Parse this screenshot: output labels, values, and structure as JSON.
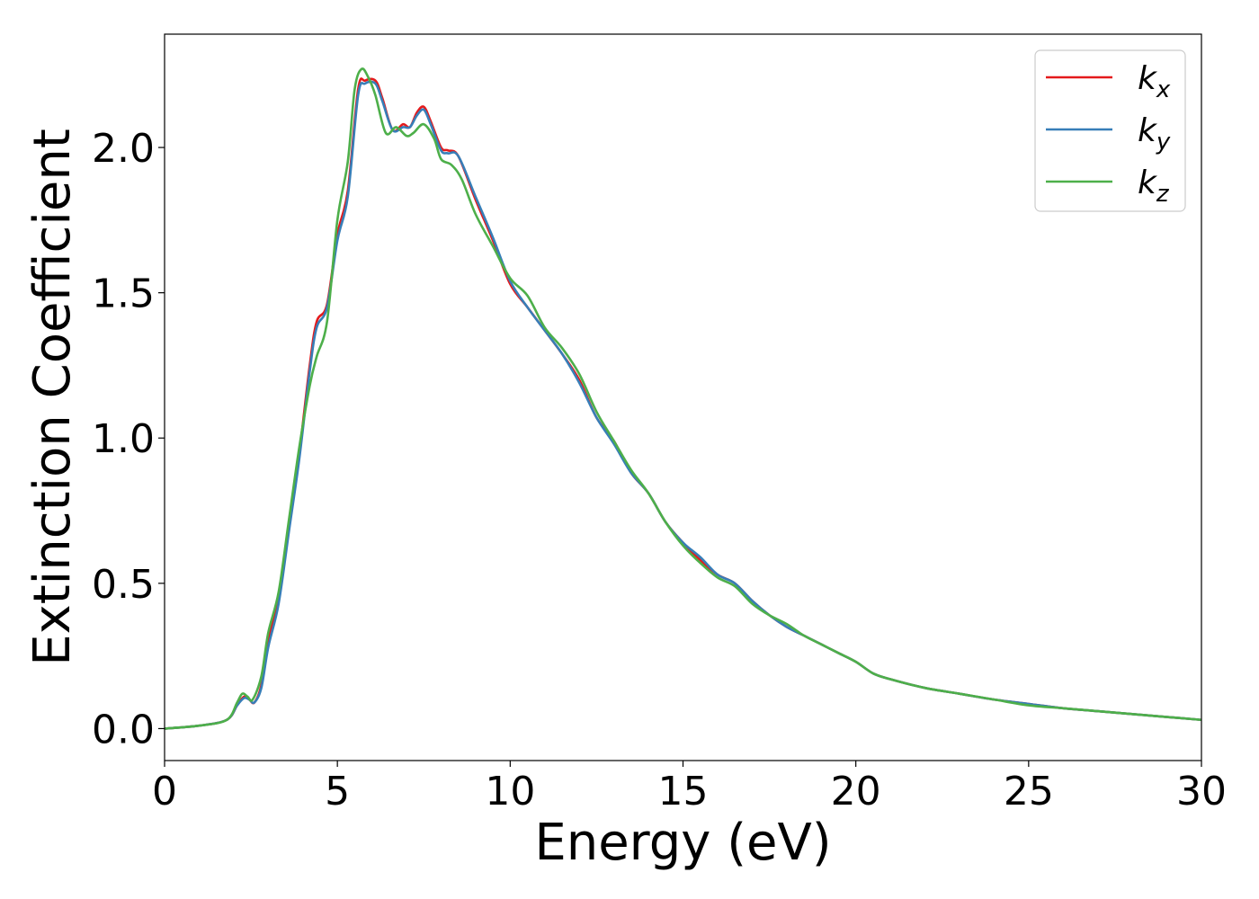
{
  "chart_data": {
    "type": "line",
    "title": "",
    "xlabel": "Energy (eV)",
    "ylabel": "Extinction Coefficient",
    "xlim": [
      0,
      30
    ],
    "ylim": [
      -0.11,
      2.39
    ],
    "xticks": [
      0,
      5,
      10,
      15,
      20,
      25,
      30
    ],
    "xtick_labels": [
      "0",
      "5",
      "10",
      "15",
      "20",
      "25",
      "30"
    ],
    "yticks": [
      0.0,
      0.5,
      1.0,
      1.5,
      2.0
    ],
    "ytick_labels": [
      "0.0",
      "0.5",
      "1.0",
      "1.5",
      "2.0"
    ],
    "grid": false,
    "legend_position": "top-right",
    "series": [
      {
        "name": "k_x",
        "label_main": "k",
        "label_sub": "x",
        "color": "#e41a1c",
        "points": [
          [
            0,
            0.0
          ],
          [
            1.0,
            0.01
          ],
          [
            1.8,
            0.03
          ],
          [
            2.1,
            0.08
          ],
          [
            2.3,
            0.11
          ],
          [
            2.45,
            0.1
          ],
          [
            2.6,
            0.09
          ],
          [
            2.8,
            0.15
          ],
          [
            3.0,
            0.3
          ],
          [
            3.3,
            0.45
          ],
          [
            3.6,
            0.7
          ],
          [
            3.9,
            0.95
          ],
          [
            4.2,
            1.25
          ],
          [
            4.4,
            1.4
          ],
          [
            4.7,
            1.46
          ],
          [
            5.0,
            1.7
          ],
          [
            5.3,
            1.85
          ],
          [
            5.6,
            2.2
          ],
          [
            5.8,
            2.23
          ],
          [
            6.1,
            2.23
          ],
          [
            6.3,
            2.17
          ],
          [
            6.6,
            2.06
          ],
          [
            6.9,
            2.08
          ],
          [
            7.1,
            2.07
          ],
          [
            7.3,
            2.12
          ],
          [
            7.5,
            2.14
          ],
          [
            7.7,
            2.09
          ],
          [
            8.0,
            2.0
          ],
          [
            8.2,
            1.99
          ],
          [
            8.5,
            1.97
          ],
          [
            9.0,
            1.82
          ],
          [
            9.5,
            1.68
          ],
          [
            10.0,
            1.53
          ],
          [
            10.5,
            1.45
          ],
          [
            11.0,
            1.37
          ],
          [
            11.5,
            1.29
          ],
          [
            12.0,
            1.2
          ],
          [
            12.5,
            1.07
          ],
          [
            13.0,
            0.99
          ],
          [
            13.5,
            0.88
          ],
          [
            14.0,
            0.81
          ],
          [
            14.5,
            0.71
          ],
          [
            15.0,
            0.64
          ],
          [
            15.5,
            0.58
          ],
          [
            16.0,
            0.53
          ],
          [
            16.5,
            0.5
          ],
          [
            17.0,
            0.44
          ],
          [
            17.5,
            0.39
          ],
          [
            18.0,
            0.35
          ],
          [
            18.5,
            0.32
          ],
          [
            19.0,
            0.29
          ],
          [
            19.5,
            0.26
          ],
          [
            20.0,
            0.23
          ],
          [
            20.5,
            0.19
          ],
          [
            21.0,
            0.17
          ],
          [
            22.0,
            0.14
          ],
          [
            23.0,
            0.12
          ],
          [
            24.0,
            0.1
          ],
          [
            25.0,
            0.085
          ],
          [
            26.0,
            0.07
          ],
          [
            27.0,
            0.06
          ],
          [
            28.0,
            0.05
          ],
          [
            29.0,
            0.04
          ],
          [
            30.0,
            0.03
          ]
        ]
      },
      {
        "name": "k_y",
        "label_main": "k",
        "label_sub": "y",
        "color": "#377eb8",
        "points": [
          [
            0,
            0.0
          ],
          [
            1.0,
            0.01
          ],
          [
            1.8,
            0.03
          ],
          [
            2.1,
            0.08
          ],
          [
            2.3,
            0.105
          ],
          [
            2.45,
            0.1
          ],
          [
            2.6,
            0.09
          ],
          [
            2.8,
            0.14
          ],
          [
            3.0,
            0.28
          ],
          [
            3.3,
            0.43
          ],
          [
            3.6,
            0.68
          ],
          [
            3.9,
            0.93
          ],
          [
            4.2,
            1.23
          ],
          [
            4.4,
            1.38
          ],
          [
            4.7,
            1.45
          ],
          [
            5.0,
            1.68
          ],
          [
            5.3,
            1.83
          ],
          [
            5.6,
            2.18
          ],
          [
            5.8,
            2.22
          ],
          [
            6.1,
            2.22
          ],
          [
            6.3,
            2.16
          ],
          [
            6.6,
            2.06
          ],
          [
            6.9,
            2.07
          ],
          [
            7.1,
            2.07
          ],
          [
            7.3,
            2.11
          ],
          [
            7.5,
            2.13
          ],
          [
            7.7,
            2.08
          ],
          [
            8.0,
            1.99
          ],
          [
            8.2,
            1.98
          ],
          [
            8.5,
            1.97
          ],
          [
            9.0,
            1.83
          ],
          [
            9.5,
            1.69
          ],
          [
            10.0,
            1.54
          ],
          [
            10.5,
            1.45
          ],
          [
            11.0,
            1.37
          ],
          [
            11.5,
            1.29
          ],
          [
            12.0,
            1.19
          ],
          [
            12.5,
            1.07
          ],
          [
            13.0,
            0.98
          ],
          [
            13.5,
            0.88
          ],
          [
            14.0,
            0.81
          ],
          [
            14.5,
            0.71
          ],
          [
            15.0,
            0.64
          ],
          [
            15.5,
            0.59
          ],
          [
            16.0,
            0.53
          ],
          [
            16.5,
            0.5
          ],
          [
            17.0,
            0.44
          ],
          [
            17.5,
            0.39
          ],
          [
            18.0,
            0.35
          ],
          [
            18.5,
            0.32
          ],
          [
            19.0,
            0.29
          ],
          [
            19.5,
            0.26
          ],
          [
            20.0,
            0.23
          ],
          [
            20.5,
            0.19
          ],
          [
            21.0,
            0.17
          ],
          [
            22.0,
            0.14
          ],
          [
            23.0,
            0.12
          ],
          [
            24.0,
            0.1
          ],
          [
            25.0,
            0.085
          ],
          [
            26.0,
            0.07
          ],
          [
            27.0,
            0.06
          ],
          [
            28.0,
            0.05
          ],
          [
            29.0,
            0.04
          ],
          [
            30.0,
            0.03
          ]
        ]
      },
      {
        "name": "k_z",
        "label_main": "k",
        "label_sub": "z",
        "color": "#4daf4a",
        "points": [
          [
            0,
            0.0
          ],
          [
            1.0,
            0.01
          ],
          [
            1.8,
            0.03
          ],
          [
            2.1,
            0.09
          ],
          [
            2.25,
            0.12
          ],
          [
            2.4,
            0.11
          ],
          [
            2.55,
            0.1
          ],
          [
            2.8,
            0.18
          ],
          [
            3.0,
            0.33
          ],
          [
            3.3,
            0.47
          ],
          [
            3.6,
            0.72
          ],
          [
            3.9,
            0.97
          ],
          [
            4.2,
            1.18
          ],
          [
            4.4,
            1.28
          ],
          [
            4.7,
            1.4
          ],
          [
            5.0,
            1.75
          ],
          [
            5.3,
            1.95
          ],
          [
            5.5,
            2.2
          ],
          [
            5.7,
            2.27
          ],
          [
            5.9,
            2.24
          ],
          [
            6.1,
            2.18
          ],
          [
            6.4,
            2.05
          ],
          [
            6.7,
            2.07
          ],
          [
            7.0,
            2.04
          ],
          [
            7.2,
            2.05
          ],
          [
            7.5,
            2.08
          ],
          [
            7.8,
            2.03
          ],
          [
            8.0,
            1.96
          ],
          [
            8.3,
            1.94
          ],
          [
            8.6,
            1.89
          ],
          [
            9.0,
            1.77
          ],
          [
            9.5,
            1.66
          ],
          [
            10.0,
            1.55
          ],
          [
            10.5,
            1.49
          ],
          [
            11.0,
            1.38
          ],
          [
            11.5,
            1.31
          ],
          [
            12.0,
            1.22
          ],
          [
            12.5,
            1.09
          ],
          [
            13.0,
            0.99
          ],
          [
            13.5,
            0.89
          ],
          [
            14.0,
            0.81
          ],
          [
            14.5,
            0.71
          ],
          [
            15.0,
            0.63
          ],
          [
            15.5,
            0.57
          ],
          [
            16.0,
            0.52
          ],
          [
            16.5,
            0.49
          ],
          [
            17.0,
            0.43
          ],
          [
            17.5,
            0.39
          ],
          [
            18.0,
            0.36
          ],
          [
            18.5,
            0.32
          ],
          [
            19.0,
            0.29
          ],
          [
            19.5,
            0.26
          ],
          [
            20.0,
            0.23
          ],
          [
            20.5,
            0.19
          ],
          [
            21.0,
            0.17
          ],
          [
            22.0,
            0.14
          ],
          [
            23.0,
            0.12
          ],
          [
            24.0,
            0.1
          ],
          [
            25.0,
            0.08
          ],
          [
            26.0,
            0.07
          ],
          [
            27.0,
            0.06
          ],
          [
            28.0,
            0.05
          ],
          [
            29.0,
            0.04
          ],
          [
            30.0,
            0.03
          ]
        ]
      }
    ]
  }
}
